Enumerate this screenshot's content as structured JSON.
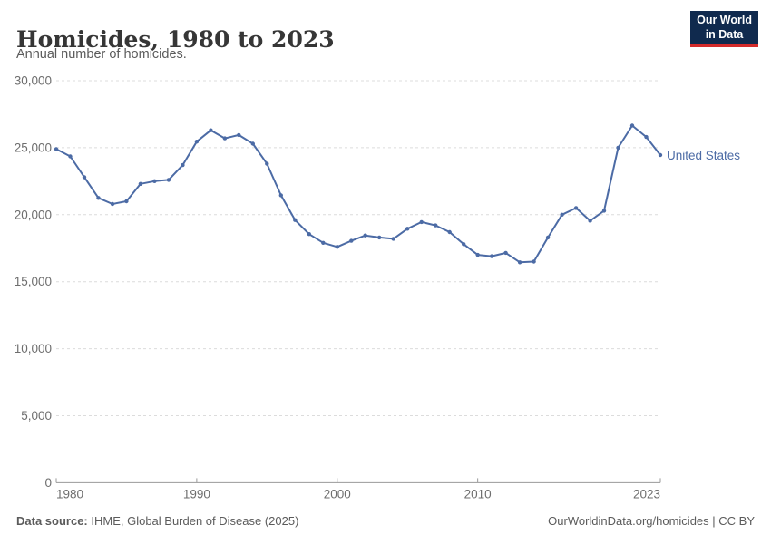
{
  "header": {
    "title": "Homicides, 1980 to 2023",
    "subtitle": "Annual number of homicides."
  },
  "logo": {
    "line1": "Our World",
    "line2": "in Data"
  },
  "colors": {
    "series": "#4C6BA5",
    "logo_bg": "#102A4E",
    "logo_red": "#D42B2B",
    "grid": "#dcdcdc",
    "axis": "#999999",
    "tick_label": "#6e6e6e"
  },
  "chart_data": {
    "type": "line",
    "title": "Homicides, 1980 to 2023",
    "subtitle": "Annual number of homicides.",
    "xlabel": "",
    "ylabel": "",
    "xlim": [
      1980,
      2023
    ],
    "ylim": [
      0,
      30000
    ],
    "grid": "horizontal-dashed",
    "legend_position": "end-of-line-label",
    "x": [
      1980,
      1981,
      1982,
      1983,
      1984,
      1985,
      1986,
      1987,
      1988,
      1989,
      1990,
      1991,
      1992,
      1993,
      1994,
      1995,
      1996,
      1997,
      1998,
      1999,
      2000,
      2001,
      2002,
      2003,
      2004,
      2005,
      2006,
      2007,
      2008,
      2009,
      2010,
      2011,
      2012,
      2013,
      2014,
      2015,
      2016,
      2017,
      2018,
      2019,
      2020,
      2021,
      2022,
      2023
    ],
    "series": [
      {
        "name": "United States",
        "color": "#4C6BA5",
        "values": [
          24900,
          24350,
          22800,
          21250,
          20800,
          21000,
          22300,
          22500,
          22600,
          23700,
          25450,
          26300,
          25700,
          25950,
          25300,
          23800,
          21450,
          19600,
          18550,
          17900,
          17600,
          18050,
          18450,
          18300,
          18200,
          18950,
          19450,
          19200,
          18700,
          17800,
          17000,
          16900,
          17150,
          16450,
          16500,
          18300,
          20000,
          20500,
          19550,
          20300,
          25000,
          26650,
          25800,
          24450
        ]
      }
    ],
    "y_ticks": [
      0,
      5000,
      10000,
      15000,
      20000,
      25000,
      30000
    ],
    "y_tick_labels": [
      "0",
      "5,000",
      "10,000",
      "15,000",
      "20,000",
      "25,000",
      "30,000"
    ],
    "x_ticks": [
      1980,
      1990,
      2000,
      2010,
      2023
    ],
    "x_tick_labels": [
      "1980",
      "1990",
      "2000",
      "2010",
      "2023"
    ]
  },
  "footer": {
    "datasource_label": "Data source:",
    "datasource_text": " IHME, Global Burden of Disease (2025)",
    "link": "OurWorldinData.org/homicides | CC BY"
  }
}
